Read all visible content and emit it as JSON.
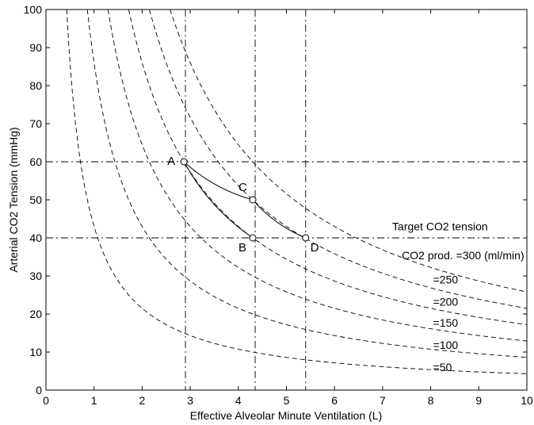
{
  "chart_data": {
    "type": "line",
    "title": "",
    "xlabel": "Effective Alveolar Minute Ventilation (L)",
    "ylabel": "Arterial CO2 Tension (mmHg)",
    "xlim": [
      0,
      10
    ],
    "ylim": [
      0,
      100
    ],
    "xticks": [
      "0",
      "1",
      "2",
      "3",
      "4",
      "5",
      "6",
      "7",
      "8",
      "9",
      "10"
    ],
    "yticks": [
      "0",
      "10",
      "20",
      "30",
      "40",
      "50",
      "60",
      "70",
      "80",
      "90",
      "100"
    ],
    "grid": false,
    "series": [
      {
        "name": "CO2 prod. =300 (ml/min)",
        "k": 258,
        "label_at": [
          7.4,
          34.4
        ]
      },
      {
        "name": "=250",
        "k": 215,
        "label_at": [
          8.05,
          28.0
        ]
      },
      {
        "name": "=200",
        "k": 172,
        "label_at": [
          8.05,
          22.2
        ]
      },
      {
        "name": "=150",
        "k": 129,
        "label_at": [
          8.05,
          16.7
        ]
      },
      {
        "name": "=100",
        "k": 86,
        "label_at": [
          8.05,
          10.8
        ]
      },
      {
        "name": "=50",
        "k": 43,
        "label_at": [
          8.05,
          5.0
        ]
      }
    ],
    "reference_lines": {
      "vertical_x": [
        2.9,
        4.35,
        5.4
      ],
      "horizontal_y": [
        40,
        60
      ],
      "style": "dash-dot"
    },
    "annotations": [
      {
        "text": "Target CO2 tension",
        "x": 7.2,
        "y": 42.0
      }
    ],
    "points": [
      {
        "label": "A",
        "x": 2.87,
        "y": 60,
        "label_pos": "left"
      },
      {
        "label": "C",
        "x": 4.3,
        "y": 50,
        "label_pos": "above-left"
      },
      {
        "label": "B",
        "x": 4.3,
        "y": 40,
        "label_pos": "below-left"
      },
      {
        "label": "D",
        "x": 5.4,
        "y": 40,
        "label_pos": "below-right"
      }
    ],
    "paths": [
      {
        "from": "A",
        "to": "C",
        "style": "solid"
      },
      {
        "from": "C",
        "to": "D",
        "style": "solid"
      },
      {
        "from": "A",
        "to": "B",
        "style": "solid"
      }
    ]
  }
}
